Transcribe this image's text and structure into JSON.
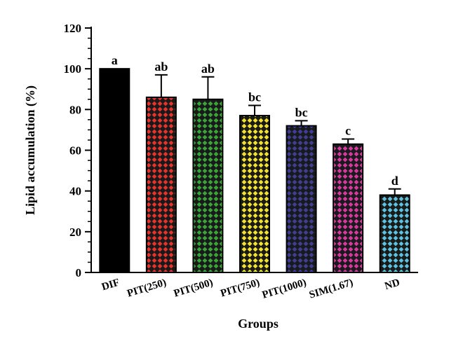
{
  "chart_data": {
    "type": "bar",
    "xlabel": "Groups",
    "ylabel": "Lipid accumulation (%)",
    "ylim": [
      0,
      120
    ],
    "yticks": [
      0,
      20,
      40,
      60,
      80,
      100,
      120
    ],
    "grid": false,
    "categories": [
      "DIF",
      "PIT(250)",
      "PIT(500)",
      "PIT(750)",
      "PIT(1000)",
      "SIM(1.67)",
      "ND"
    ],
    "values": [
      100,
      86,
      85,
      77,
      72,
      63,
      38
    ],
    "errors": [
      0,
      11,
      11,
      5,
      2.5,
      2.5,
      3
    ],
    "significance": [
      "a",
      "ab",
      "ab",
      "bc",
      "bc",
      "c",
      "d"
    ],
    "colors": [
      "#000000",
      "#e8322e",
      "#3aa63a",
      "#f2e42a",
      "#3e3e9a",
      "#d63aa0",
      "#5cc4dc"
    ]
  }
}
